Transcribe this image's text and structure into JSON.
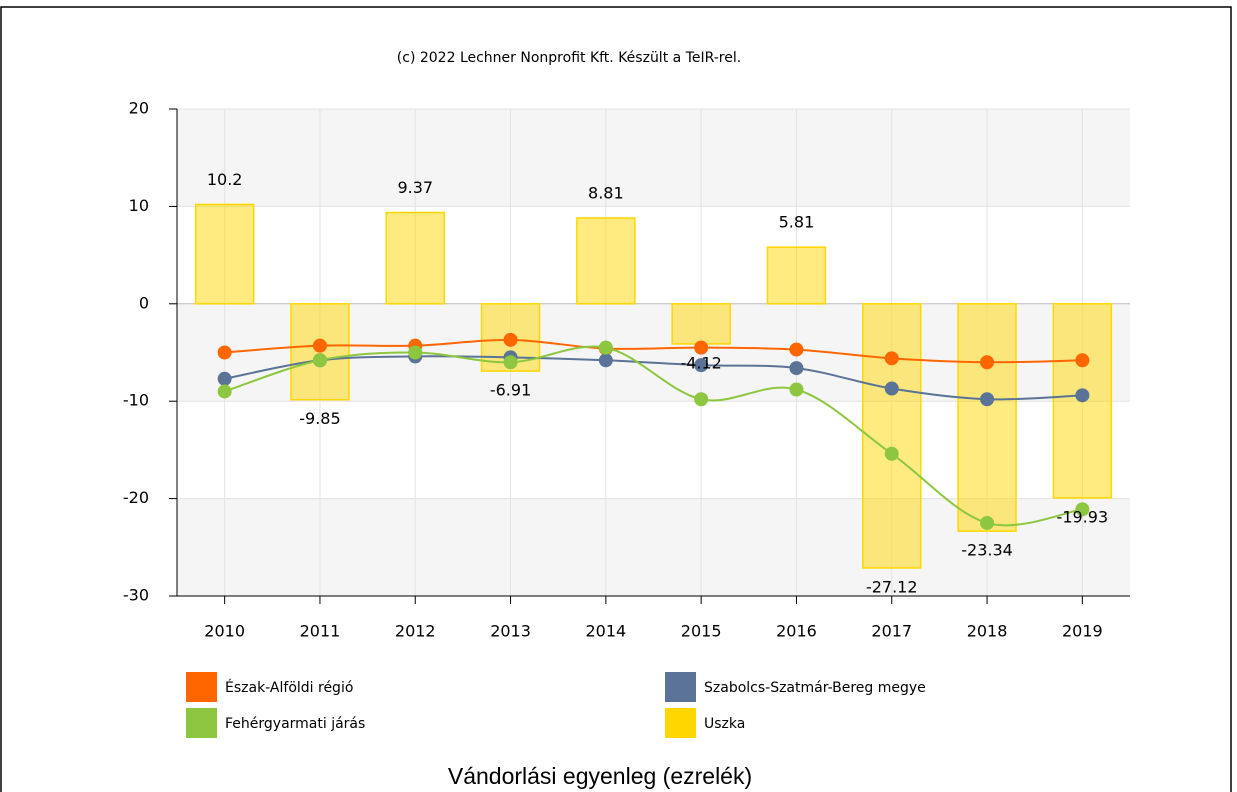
{
  "chart_data": {
    "type": "bar",
    "title": "Vándorlási egyenleg (ezrelék)",
    "subtitle": "(c) 2022 Lechner Nonprofit Kft. Készült a TeIR-rel.",
    "categories": [
      "2010",
      "2011",
      "2012",
      "2013",
      "2014",
      "2015",
      "2016",
      "2017",
      "2018",
      "2019"
    ],
    "series": [
      {
        "name": "Észak-Alföldi régió",
        "type": "line",
        "color": "#ff6600",
        "values": [
          -5.0,
          -4.3,
          -4.3,
          -3.7,
          -4.6,
          -4.5,
          -4.7,
          -5.6,
          -6.0,
          -5.8
        ]
      },
      {
        "name": "Szabolcs-Szatmár-Bereg megye",
        "type": "line",
        "color": "#5a7396",
        "values": [
          -7.7,
          -5.8,
          -5.4,
          -5.5,
          -5.8,
          -6.3,
          -6.6,
          -8.7,
          -9.8,
          -9.4
        ]
      },
      {
        "name": "Fehérgyarmati járás",
        "type": "line",
        "color": "#8dc63f",
        "values": [
          -9.0,
          -5.8,
          -5.0,
          -6.0,
          -4.5,
          -9.8,
          -8.8,
          -15.4,
          -22.5,
          -21.1
        ]
      },
      {
        "name": "Uszka",
        "type": "bar",
        "color": "#ffd700",
        "values": [
          10.2,
          -9.85,
          9.37,
          -6.91,
          8.81,
          -4.12,
          5.81,
          -27.12,
          -23.34,
          -19.93
        ]
      }
    ],
    "ylim": [
      -30,
      20
    ],
    "yticks": [
      -30,
      -20,
      -10,
      0,
      10,
      20
    ],
    "grid": true,
    "legend": "bottom"
  }
}
